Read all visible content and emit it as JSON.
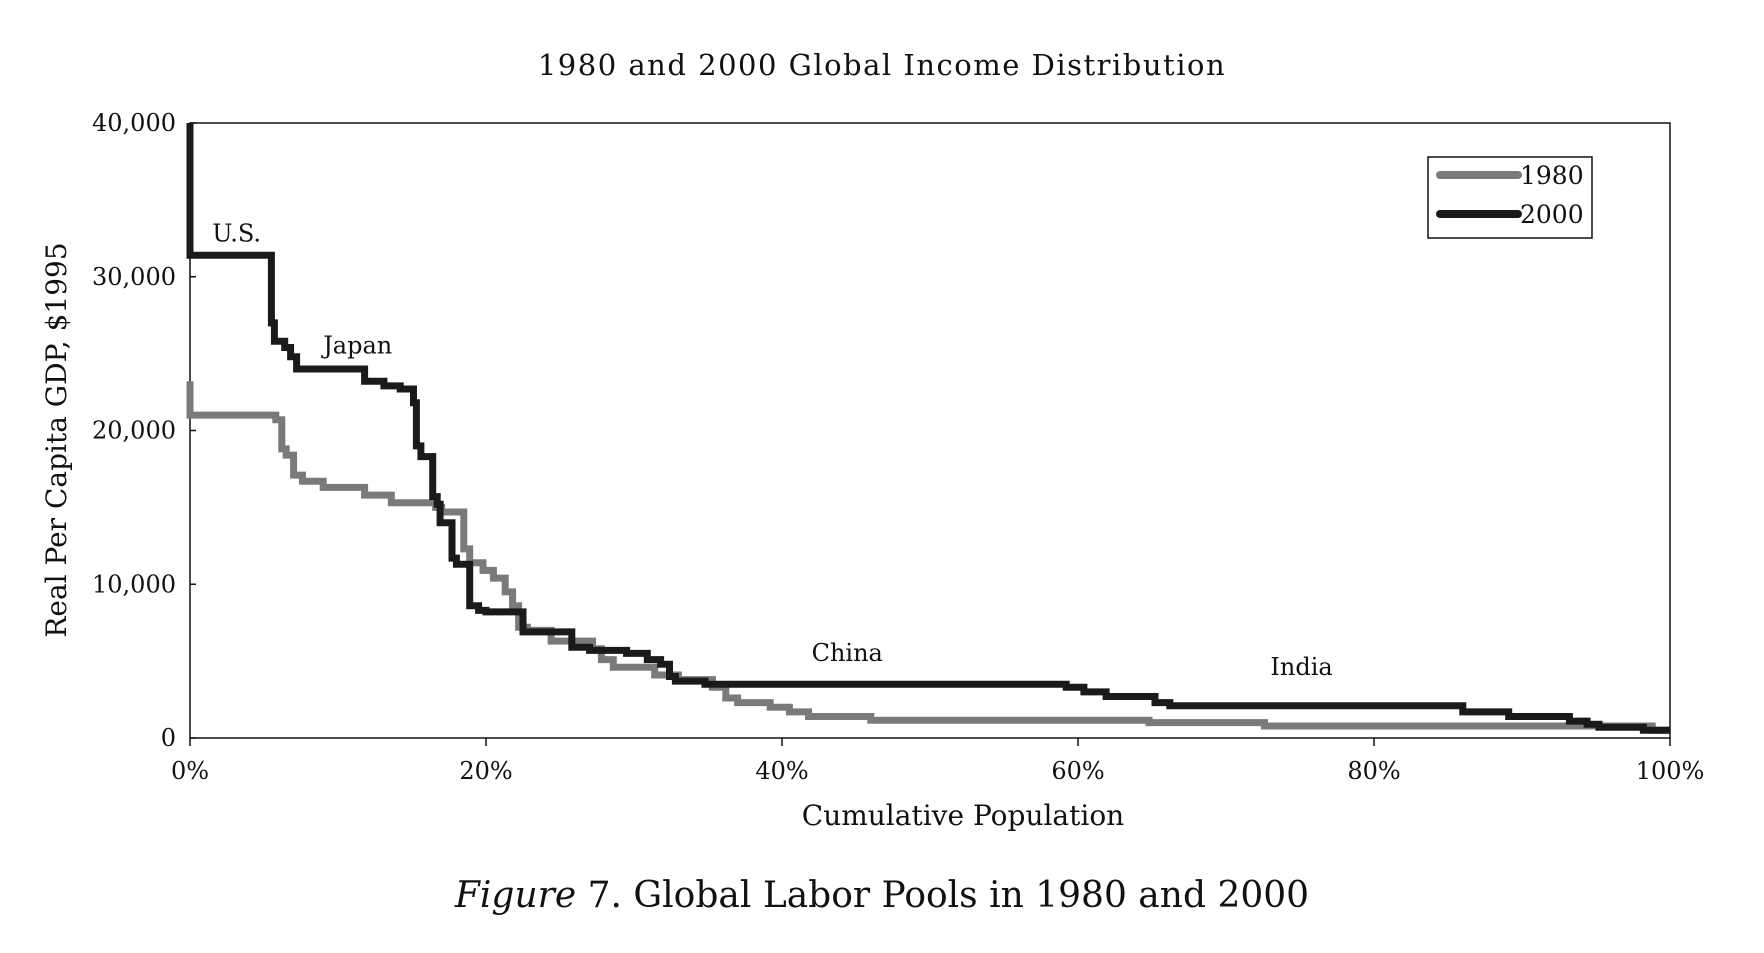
{
  "caption": {
    "italic": "Figure",
    "rest": " 7. Global Labor Pools in 1980 and 2000"
  },
  "chart_data": {
    "type": "line",
    "title": "1980 and 2000 Global Income Distribution",
    "xlabel": "Cumulative Population",
    "ylabel": "Real Per Capita GDP, $1995",
    "xlim": [
      0,
      100
    ],
    "ylim": [
      0,
      40000
    ],
    "x_ticks": [
      {
        "value": 0,
        "label": "0%"
      },
      {
        "value": 20,
        "label": "20%"
      },
      {
        "value": 40,
        "label": "40%"
      },
      {
        "value": 60,
        "label": "60%"
      },
      {
        "value": 80,
        "label": "80%"
      },
      {
        "value": 100,
        "label": "100%"
      }
    ],
    "y_ticks": [
      {
        "value": 0,
        "label": "0"
      },
      {
        "value": 10000,
        "label": "10,000"
      },
      {
        "value": 20000,
        "label": "20,000"
      },
      {
        "value": 30000,
        "label": "30,000"
      },
      {
        "value": 40000,
        "label": "40,000"
      }
    ],
    "grid": false,
    "legend_position": "top-right",
    "series": [
      {
        "name": "1980",
        "color": "#7a7a7a",
        "points": [
          [
            0,
            23200
          ],
          [
            0,
            21000
          ],
          [
            5.8,
            21000
          ],
          [
            5.8,
            20700
          ],
          [
            6.2,
            20700
          ],
          [
            6.2,
            18800
          ],
          [
            6.5,
            18800
          ],
          [
            6.5,
            18400
          ],
          [
            7.0,
            18400
          ],
          [
            7.0,
            17100
          ],
          [
            7.6,
            17100
          ],
          [
            7.6,
            16700
          ],
          [
            9.0,
            16700
          ],
          [
            9.0,
            16300
          ],
          [
            11.8,
            16300
          ],
          [
            11.8,
            15800
          ],
          [
            13.6,
            15800
          ],
          [
            13.6,
            15300
          ],
          [
            16.6,
            15300
          ],
          [
            16.6,
            15000
          ],
          [
            17.0,
            15000
          ],
          [
            17.0,
            14700
          ],
          [
            18.5,
            14700
          ],
          [
            18.5,
            12300
          ],
          [
            18.9,
            12300
          ],
          [
            18.9,
            11400
          ],
          [
            19.8,
            11400
          ],
          [
            19.8,
            10900
          ],
          [
            20.5,
            10900
          ],
          [
            20.5,
            10400
          ],
          [
            21.3,
            10400
          ],
          [
            21.3,
            9500
          ],
          [
            21.8,
            9500
          ],
          [
            21.8,
            8600
          ],
          [
            22.2,
            8600
          ],
          [
            22.2,
            7200
          ],
          [
            22.8,
            7200
          ],
          [
            22.8,
            7000
          ],
          [
            24.4,
            7000
          ],
          [
            24.4,
            6300
          ],
          [
            27.2,
            6300
          ],
          [
            27.2,
            5800
          ],
          [
            27.8,
            5800
          ],
          [
            27.8,
            5100
          ],
          [
            28.6,
            5100
          ],
          [
            28.6,
            4600
          ],
          [
            31.4,
            4600
          ],
          [
            31.4,
            4100
          ],
          [
            33.0,
            4100
          ],
          [
            33.0,
            3800
          ],
          [
            35.3,
            3800
          ],
          [
            35.3,
            3300
          ],
          [
            36.2,
            3300
          ],
          [
            36.2,
            2600
          ],
          [
            37.0,
            2600
          ],
          [
            37.0,
            2300
          ],
          [
            39.2,
            2300
          ],
          [
            39.2,
            2000
          ],
          [
            40.5,
            2000
          ],
          [
            40.5,
            1700
          ],
          [
            41.8,
            1700
          ],
          [
            41.8,
            1400
          ],
          [
            46.0,
            1400
          ],
          [
            46.0,
            1150
          ],
          [
            64.8,
            1150
          ],
          [
            64.8,
            1000
          ],
          [
            72.6,
            1000
          ],
          [
            72.6,
            780
          ],
          [
            98.8,
            780
          ],
          [
            98.8,
            500
          ],
          [
            100,
            500
          ]
        ]
      },
      {
        "name": "2000",
        "color": "#1a1a1a",
        "points": [
          [
            0,
            40000
          ],
          [
            0,
            31400
          ],
          [
            5.5,
            31400
          ],
          [
            5.5,
            27000
          ],
          [
            5.7,
            27000
          ],
          [
            5.7,
            25800
          ],
          [
            6.4,
            25800
          ],
          [
            6.4,
            25400
          ],
          [
            6.8,
            25400
          ],
          [
            6.8,
            24800
          ],
          [
            7.2,
            24800
          ],
          [
            7.2,
            24000
          ],
          [
            11.8,
            24000
          ],
          [
            11.8,
            23200
          ],
          [
            13.1,
            23200
          ],
          [
            13.1,
            22900
          ],
          [
            14.2,
            22900
          ],
          [
            14.2,
            22700
          ],
          [
            15.1,
            22700
          ],
          [
            15.1,
            21800
          ],
          [
            15.3,
            21800
          ],
          [
            15.3,
            19000
          ],
          [
            15.6,
            19000
          ],
          [
            15.6,
            18300
          ],
          [
            16.4,
            18300
          ],
          [
            16.4,
            15700
          ],
          [
            16.7,
            15700
          ],
          [
            16.7,
            15200
          ],
          [
            16.9,
            15200
          ],
          [
            16.9,
            14000
          ],
          [
            17.7,
            14000
          ],
          [
            17.7,
            11700
          ],
          [
            18.0,
            11700
          ],
          [
            18.0,
            11300
          ],
          [
            18.9,
            11300
          ],
          [
            18.9,
            8600
          ],
          [
            19.5,
            8600
          ],
          [
            19.5,
            8300
          ],
          [
            20.0,
            8300
          ],
          [
            20.0,
            8200
          ],
          [
            22.5,
            8200
          ],
          [
            22.5,
            6900
          ],
          [
            25.8,
            6900
          ],
          [
            25.8,
            5900
          ],
          [
            27.0,
            5900
          ],
          [
            27.0,
            5700
          ],
          [
            29.5,
            5700
          ],
          [
            29.5,
            5500
          ],
          [
            30.9,
            5500
          ],
          [
            30.9,
            5100
          ],
          [
            31.8,
            5100
          ],
          [
            31.8,
            4800
          ],
          [
            32.4,
            4800
          ],
          [
            32.4,
            4000
          ],
          [
            32.8,
            4000
          ],
          [
            32.8,
            3700
          ],
          [
            34.8,
            3700
          ],
          [
            34.8,
            3500
          ],
          [
            59.2,
            3500
          ],
          [
            59.2,
            3300
          ],
          [
            60.4,
            3300
          ],
          [
            60.4,
            3000
          ],
          [
            61.9,
            3000
          ],
          [
            61.9,
            2700
          ],
          [
            65.2,
            2700
          ],
          [
            65.2,
            2300
          ],
          [
            66.2,
            2300
          ],
          [
            66.2,
            2100
          ],
          [
            86.0,
            2100
          ],
          [
            86.0,
            1700
          ],
          [
            89.1,
            1700
          ],
          [
            89.1,
            1400
          ],
          [
            93.2,
            1400
          ],
          [
            93.2,
            1100
          ],
          [
            94.4,
            1100
          ],
          [
            94.4,
            900
          ],
          [
            95.2,
            900
          ],
          [
            95.2,
            700
          ],
          [
            98.2,
            700
          ],
          [
            98.2,
            500
          ],
          [
            100,
            500
          ]
        ]
      }
    ],
    "annotations": [
      {
        "text": "U.S.",
        "x": 1.5,
        "y": 32300
      },
      {
        "text": "Japan",
        "x": 9.0,
        "y": 25000
      },
      {
        "text": "China",
        "x": 42.0,
        "y": 5000
      },
      {
        "text": "India",
        "x": 73.0,
        "y": 4100
      }
    ]
  }
}
